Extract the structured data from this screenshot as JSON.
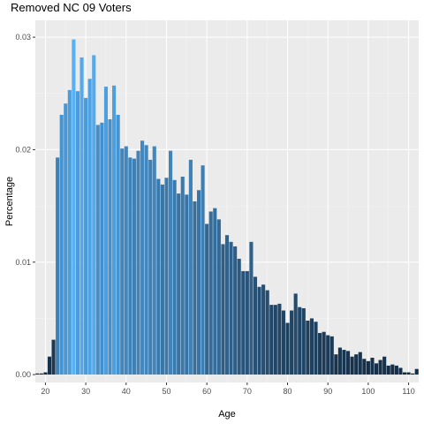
{
  "chart_data": {
    "type": "bar",
    "title": "Removed NC 09 Voters",
    "xlabel": "Age",
    "ylabel": "Percentage",
    "xlim": [
      17.5,
      112.5
    ],
    "ylim": [
      -0.0007,
      0.0315
    ],
    "x_ticks": [
      20,
      30,
      40,
      50,
      60,
      70,
      80,
      90,
      100,
      110
    ],
    "y_ticks": [
      0.0,
      0.01,
      0.02,
      0.03
    ],
    "y_tick_labels": [
      "0.00",
      "0.01",
      "0.02",
      "0.03"
    ],
    "grid": true,
    "color_scale": {
      "low": "#132b43",
      "high": "#56b1f7"
    },
    "x": [
      18,
      19,
      20,
      21,
      22,
      23,
      24,
      25,
      26,
      27,
      28,
      29,
      30,
      31,
      32,
      33,
      34,
      35,
      36,
      37,
      38,
      39,
      40,
      41,
      42,
      43,
      44,
      45,
      46,
      47,
      48,
      49,
      50,
      51,
      52,
      53,
      54,
      55,
      56,
      57,
      58,
      59,
      60,
      61,
      62,
      63,
      64,
      65,
      66,
      67,
      68,
      69,
      70,
      71,
      72,
      73,
      74,
      75,
      76,
      77,
      78,
      79,
      80,
      81,
      82,
      83,
      84,
      85,
      86,
      87,
      88,
      89,
      90,
      91,
      92,
      93,
      94,
      95,
      96,
      97,
      98,
      99,
      100,
      101,
      102,
      103,
      104,
      105,
      106,
      107,
      108,
      109,
      110,
      111,
      112
    ],
    "values": [
      0.0001,
      0.0001,
      0.0002,
      0.0016,
      0.0031,
      0.0193,
      0.0231,
      0.0241,
      0.0253,
      0.0298,
      0.0252,
      0.0282,
      0.0246,
      0.0263,
      0.0284,
      0.0222,
      0.0224,
      0.0256,
      0.0227,
      0.0257,
      0.0231,
      0.0201,
      0.0203,
      0.0193,
      0.0192,
      0.0199,
      0.0208,
      0.0204,
      0.0191,
      0.0203,
      0.0174,
      0.0169,
      0.0175,
      0.0199,
      0.0173,
      0.0161,
      0.0176,
      0.016,
      0.0191,
      0.0154,
      0.0164,
      0.0186,
      0.0134,
      0.0145,
      0.0148,
      0.0138,
      0.0116,
      0.0124,
      0.0118,
      0.0114,
      0.0103,
      0.0092,
      0.0092,
      0.0118,
      0.0087,
      0.0078,
      0.008,
      0.0075,
      0.0062,
      0.0062,
      0.0063,
      0.0057,
      0.0046,
      0.0057,
      0.0072,
      0.006,
      0.0059,
      0.0048,
      0.005,
      0.0047,
      0.0037,
      0.0038,
      0.0035,
      0.0034,
      0.0018,
      0.0024,
      0.0022,
      0.0021,
      0.0016,
      0.0018,
      0.002,
      0.0014,
      0.0012,
      0.0015,
      0.001,
      0.0013,
      0.0016,
      0.0008,
      0.0009,
      0.0008,
      0.0006,
      0.0002,
      0.0002,
      0.0001,
      0.0005
    ]
  }
}
